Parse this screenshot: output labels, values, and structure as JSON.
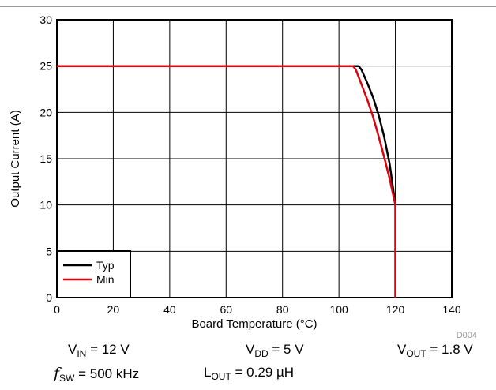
{
  "chart_data": {
    "type": "line",
    "title": "",
    "xlabel": "Board Temperature (°C)",
    "ylabel": "Output Current (A)",
    "xlim": [
      0,
      140
    ],
    "ylim": [
      0,
      30
    ],
    "xticks": [
      0,
      20,
      40,
      60,
      80,
      100,
      120,
      140
    ],
    "yticks": [
      0,
      5,
      10,
      15,
      20,
      25,
      30
    ],
    "grid": true,
    "legend_position": "bottom-left",
    "series": [
      {
        "name": "Typ",
        "color": "#000000",
        "points": [
          [
            0,
            25
          ],
          [
            107,
            25
          ],
          [
            108,
            24.6
          ],
          [
            110,
            23.2
          ],
          [
            112,
            21.7
          ],
          [
            114,
            19.8
          ],
          [
            116,
            17.4
          ],
          [
            118,
            14.4
          ],
          [
            120,
            10
          ],
          [
            120,
            0
          ]
        ]
      },
      {
        "name": "Min",
        "color": "#e0000e",
        "points": [
          [
            0,
            25
          ],
          [
            105,
            25
          ],
          [
            106,
            24.6
          ],
          [
            108,
            23.0
          ],
          [
            110,
            21.4
          ],
          [
            112,
            19.6
          ],
          [
            114,
            17.5
          ],
          [
            116,
            15.2
          ],
          [
            118,
            12.8
          ],
          [
            120,
            10
          ],
          [
            120,
            0
          ]
        ]
      }
    ],
    "annotation": "D004"
  },
  "conditions": {
    "vin": {
      "sym": "V",
      "sub": "IN",
      "rest": " = 12 V"
    },
    "vdd": {
      "sym": "V",
      "sub": "DD",
      "rest": " = 5 V"
    },
    "vout": {
      "sym": "V",
      "sub": "OUT",
      "rest": " = 1.8 V"
    },
    "fsw": {
      "sym": "f",
      "sub": "SW",
      "rest": " = 500 kHz"
    },
    "lout": {
      "sym": "L",
      "sub": "OUT",
      "rest": " = 0.29 µH"
    }
  }
}
